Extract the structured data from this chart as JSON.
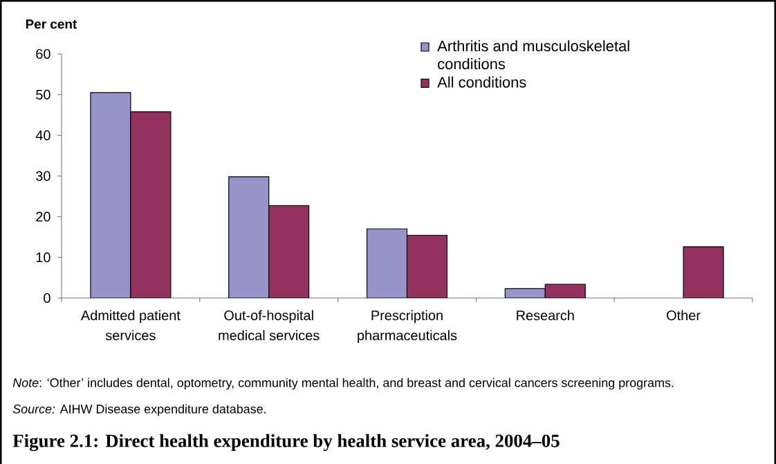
{
  "chart_data": {
    "type": "bar",
    "title": "Figure 2.1: Direct health expenditure by health service area, 2004–05",
    "ylabel": "Per cent",
    "categories": [
      "Admitted patient services",
      "Out-of-hospital medical services",
      "Prescription pharmaceuticals",
      "Research",
      "Other"
    ],
    "series": [
      {
        "name": "Arthritis and musculoskeletal conditions",
        "color": "#9694c8",
        "values": [
          50.5,
          29.8,
          17.0,
          2.3,
          null
        ]
      },
      {
        "name": "All conditions",
        "color": "#93325f",
        "values": [
          45.8,
          22.7,
          15.4,
          3.4,
          12.6
        ]
      }
    ],
    "ylim": [
      0,
      60
    ],
    "yticks": [
      0,
      10,
      20,
      30,
      40,
      50,
      60
    ],
    "legend": "top right",
    "annotations": [
      "*Note*: ‘Other’ includes dental, optometry, community mental health, and breast and cervical cancers screening programs.",
      "*Source:* AIHW Disease expenditure database."
    ]
  }
}
